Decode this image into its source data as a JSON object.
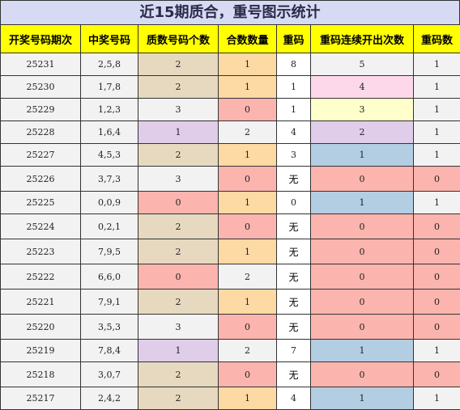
{
  "title": "近15期质合，重号图示统计",
  "headers": [
    "开奖号码期次",
    "中奖号码",
    "质数号码个数",
    "合数数量",
    "重码",
    "重码连续开出次数",
    "重码数"
  ],
  "rows": [
    {
      "period": "25231",
      "numbers": "2,5,8",
      "prime_count": "2",
      "composite_count": "1",
      "repeat": "8",
      "streak": "5",
      "repeat_count": "1"
    },
    {
      "period": "25230",
      "numbers": "1,7,8",
      "prime_count": "2",
      "composite_count": "1",
      "repeat": "1",
      "streak": "4",
      "repeat_count": "1"
    },
    {
      "period": "25229",
      "numbers": "1,2,3",
      "prime_count": "3",
      "composite_count": "0",
      "repeat": "1",
      "streak": "3",
      "repeat_count": "1"
    },
    {
      "period": "25228",
      "numbers": "1,6,4",
      "prime_count": "1",
      "composite_count": "2",
      "repeat": "4",
      "streak": "2",
      "repeat_count": "1"
    },
    {
      "period": "25227",
      "numbers": "4,5,3",
      "prime_count": "2",
      "composite_count": "1",
      "repeat": "3",
      "streak": "1",
      "repeat_count": "1"
    },
    {
      "period": "25226",
      "numbers": "3,7,3",
      "prime_count": "3",
      "composite_count": "0",
      "repeat": "无",
      "streak": "0",
      "repeat_count": "0"
    },
    {
      "period": "25225",
      "numbers": "0,0,9",
      "prime_count": "0",
      "composite_count": "1",
      "repeat": "0",
      "streak": "1",
      "repeat_count": "1"
    },
    {
      "period": "25224",
      "numbers": "0,2,1",
      "prime_count": "2",
      "composite_count": "0",
      "repeat": "无",
      "streak": "0",
      "repeat_count": "0"
    },
    {
      "period": "25223",
      "numbers": "7,9,5",
      "prime_count": "2",
      "composite_count": "1",
      "repeat": "无",
      "streak": "0",
      "repeat_count": "0"
    },
    {
      "period": "25222",
      "numbers": "6,6,0",
      "prime_count": "0",
      "composite_count": "2",
      "repeat": "无",
      "streak": "0",
      "repeat_count": "0"
    },
    {
      "period": "25221",
      "numbers": "7,9,1",
      "prime_count": "2",
      "composite_count": "1",
      "repeat": "无",
      "streak": "0",
      "repeat_count": "0"
    },
    {
      "period": "25220",
      "numbers": "3,5,3",
      "prime_count": "3",
      "composite_count": "0",
      "repeat": "无",
      "streak": "0",
      "repeat_count": "0"
    },
    {
      "period": "25219",
      "numbers": "7,8,4",
      "prime_count": "1",
      "composite_count": "2",
      "repeat": "7",
      "streak": "1",
      "repeat_count": "1"
    },
    {
      "period": "25218",
      "numbers": "3,0,7",
      "prime_count": "2",
      "composite_count": "0",
      "repeat": "无",
      "streak": "0",
      "repeat_count": "0"
    },
    {
      "period": "25217",
      "numbers": "2,4,2",
      "prime_count": "2",
      "composite_count": "1",
      "repeat": "4",
      "streak": "1",
      "repeat_count": "1"
    }
  ],
  "colors": {
    "header_bg": "#ffff00",
    "title_bg": "#d6daf2",
    "value_0_bg": "#fbb4ae",
    "value_1_bg": "#fdd9a3",
    "value_2_bg": "#e6d9bf",
    "value_3_bg": "#f2f2f2",
    "prime_1_bg": "#dfcdea",
    "streak_1_bg": "#b3cde3",
    "streak_2_bg": "#dfcdea",
    "streak_3_bg": "#ffffcc",
    "streak_4_bg": "#fdd8ea"
  }
}
